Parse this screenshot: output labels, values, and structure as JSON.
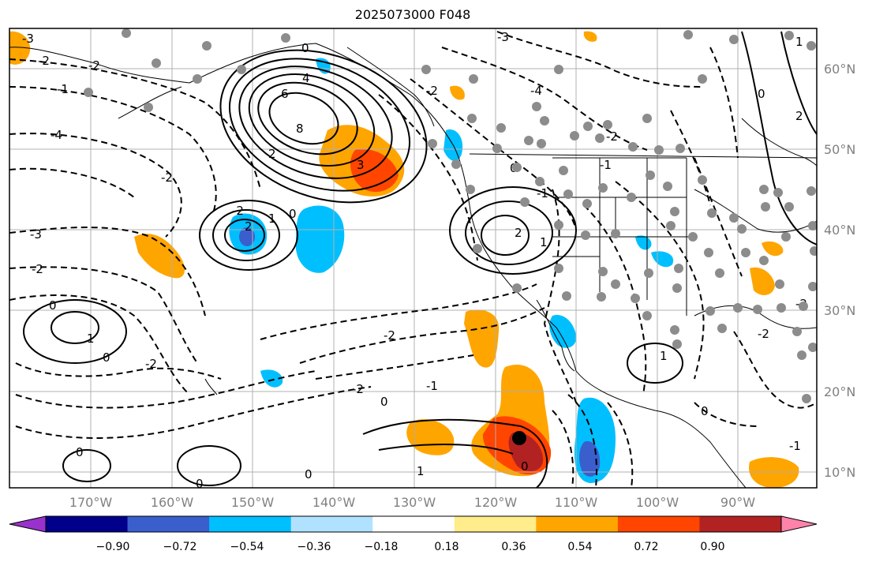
{
  "title": "2025073000 F048",
  "map": {
    "lon_labels": [
      "170°W",
      "160°W",
      "150°W",
      "140°W",
      "130°W",
      "120°W",
      "110°W",
      "100°W",
      "90°W"
    ],
    "lat_labels": [
      "60°N",
      "50°N",
      "40°N",
      "30°N",
      "20°N",
      "10°N"
    ],
    "contour_labels": [
      "4",
      "6",
      "8",
      "3",
      "2",
      "0",
      "-2",
      "-3",
      "-4",
      "-1",
      "1",
      "2",
      "-2",
      "-2",
      "0",
      "1",
      "0",
      "-3",
      "-2",
      "-4",
      "2",
      "-1",
      "-2",
      "0",
      "0",
      "-2",
      "-2",
      "-1",
      "1",
      "0",
      "1",
      "-2",
      "0",
      "0",
      "1",
      "0",
      "-1",
      "2",
      "-2",
      "-2",
      "0",
      "1",
      "-2",
      "-2",
      "-3",
      "0",
      "-1",
      "0"
    ],
    "center_marker": "filled-circle"
  },
  "colorbar": {
    "tick_labels": [
      "−0.90",
      "−0.72",
      "−0.54",
      "−0.36",
      "−0.18",
      "0.18",
      "0.36",
      "0.54",
      "0.72",
      "0.90"
    ],
    "colors": [
      "#9932cc",
      "#00008b",
      "#3a5fcd",
      "#00bfff",
      "#b0e2ff",
      "#ffffff",
      "#ffec8b",
      "#ffa500",
      "#ff4500",
      "#b22222",
      "#ff82ab"
    ]
  }
}
